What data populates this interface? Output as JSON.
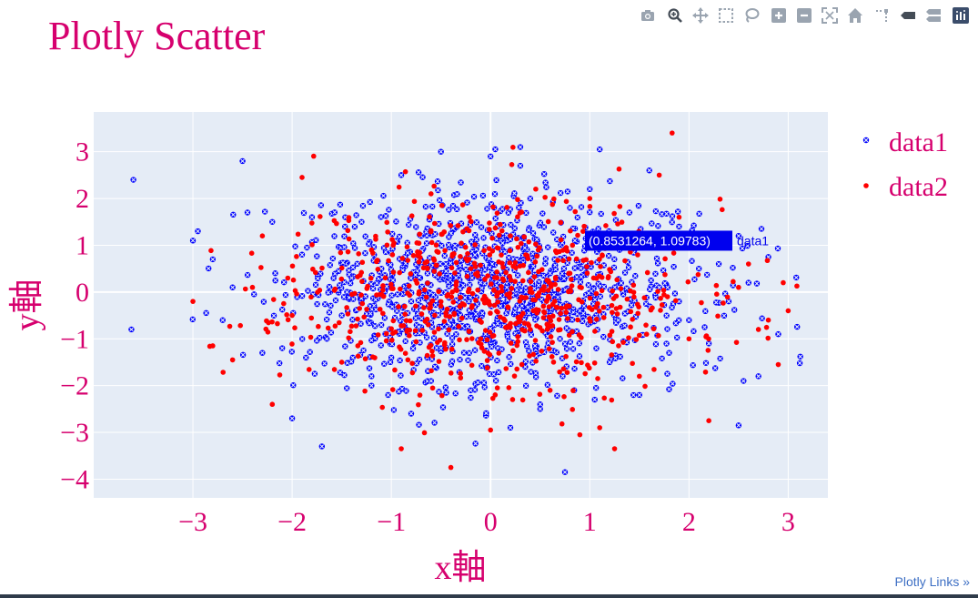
{
  "toolbar": {
    "icons": [
      "camera-icon",
      "zoom-icon",
      "pan-icon",
      "box-select-icon",
      "lasso-select-icon",
      "zoom-in-icon",
      "zoom-out-icon",
      "autoscale-icon",
      "reset-axes-icon",
      "spike-lines-icon",
      "hover-closest-icon",
      "hover-compare-icon",
      "plotly-logo-icon"
    ]
  },
  "footer": {
    "links_label": "Plotly Links »"
  },
  "colors": {
    "title": "#d6006e",
    "series1": "#0000ff",
    "series2": "#ff0000",
    "plot_bg": "#e5ecf6",
    "link": "#3d6fc4"
  },
  "chart_data": {
    "type": "scatter",
    "title": "Plotly Scatter",
    "xlabel": "x軸",
    "ylabel": "y軸",
    "xlim": [
      -4.0,
      3.4
    ],
    "ylim": [
      -4.4,
      3.85
    ],
    "xticks": [
      -3,
      -2,
      -1,
      0,
      1,
      2,
      3
    ],
    "xtick_labels": [
      "−3",
      "−2",
      "−1",
      "0",
      "1",
      "2",
      "3"
    ],
    "yticks": [
      -4,
      -3,
      -2,
      -1,
      0,
      1,
      2,
      3
    ],
    "ytick_labels": [
      "−4",
      "−3",
      "−2",
      "−1",
      "0",
      "1",
      "2",
      "3"
    ],
    "grid": true,
    "legend_position": "top-right",
    "series": [
      {
        "name": "data1",
        "marker": "x-circle",
        "color": "#0000ff",
        "x": [
          -3.6,
          -3.62,
          -3.0,
          -2.95,
          -2.8,
          -2.6,
          -2.5,
          -2.45,
          -2.2,
          -2.1,
          -2.0,
          -1.9,
          -1.8,
          -1.7,
          -1.65,
          -1.5,
          -1.4,
          -1.3,
          -1.2,
          -1.1,
          -1.0,
          -0.9,
          -0.8,
          -0.7,
          -0.6,
          -0.5,
          -0.45,
          -0.4,
          -0.3,
          -0.2,
          -0.1,
          0.0,
          0.1,
          0.2,
          0.3,
          0.35,
          0.4,
          0.5,
          0.6,
          0.7,
          0.8,
          0.9,
          1.0,
          1.1,
          1.2,
          1.3,
          1.5,
          1.6,
          1.7,
          1.8,
          1.9,
          2.0,
          2.1,
          2.2,
          2.3,
          2.4,
          2.5,
          2.55,
          2.6,
          2.7,
          2.8,
          2.9,
          0.75,
          -2.3,
          -1.2,
          0.5,
          1.4,
          -0.8,
          0.2,
          1.05,
          0.3,
          -0.5,
          2.5,
          -2.7,
          0.85
        ],
        "y": [
          2.4,
          -0.8,
          1.1,
          1.3,
          0.7,
          0.1,
          2.8,
          1.7,
          1.5,
          -1.2,
          -2.7,
          0.8,
          1.6,
          -3.3,
          -1.0,
          -0.5,
          0.3,
          1.5,
          -2.0,
          0.5,
          -1.4,
          2.5,
          -0.2,
          1.2,
          -1.9,
          3.0,
          0.6,
          -0.6,
          1.0,
          -2.1,
          0.2,
          2.9,
          -0.3,
          0.9,
          3.1,
          -1.6,
          2.0,
          -2.5,
          0.4,
          -1.0,
          1.8,
          -0.4,
          2.2,
          3.05,
          -1.5,
          0.9,
          -2.2,
          2.6,
          0.1,
          -1.3,
          1.4,
          -0.6,
          0.5,
          -1.1,
          0.6,
          -0.2,
          -2.85,
          -1.9,
          0.2,
          -1.8,
          0.75,
          -0.9,
          -3.85,
          -1.3,
          -1.8,
          -2.4,
          1.7,
          -2.6,
          -2.9,
          -2.3,
          2.7,
          -1.2,
          1.2,
          -0.6,
          1.1
        ],
        "n_random_points": 1100,
        "distribution": "normal",
        "seed": 7
      },
      {
        "name": "data2",
        "marker": "circle",
        "color": "#ff0000",
        "x": [
          -3.0,
          -2.8,
          -2.6,
          -2.4,
          -2.3,
          -2.2,
          -2.0,
          -1.9,
          -1.5,
          -1.2,
          -0.9,
          -0.6,
          -0.4,
          -0.2,
          -0.1,
          0.0,
          0.2,
          0.4,
          0.6,
          0.8,
          1.0,
          1.1,
          1.25,
          1.5,
          1.7,
          1.83,
          2.0,
          2.2,
          2.5,
          2.6,
          2.7,
          2.8,
          2.9,
          2.95,
          3.0,
          0.9,
          -0.5,
          1.9
        ],
        "y": [
          -0.2,
          -1.15,
          -1.45,
          0.1,
          1.2,
          -2.4,
          -0.5,
          2.45,
          -1.5,
          0.9,
          -3.35,
          2.1,
          -3.75,
          0.5,
          -1.0,
          -2.95,
          1.2,
          -0.8,
          -2.1,
          0.4,
          2.0,
          -2.9,
          -3.35,
          -1.8,
          2.5,
          3.4,
          -1.0,
          -2.75,
          0.1,
          0.6,
          -0.8,
          -0.6,
          -1.55,
          0.2,
          -0.4,
          -3.05,
          -0.3,
          1.6
        ],
        "n_random_points": 700,
        "distribution": "normal",
        "seed": 11
      }
    ],
    "hover": {
      "series": "data1",
      "x": 0.8531264,
      "y": 1.09783,
      "label": "(0.8531264, 1.09783)",
      "name": "data1"
    }
  }
}
